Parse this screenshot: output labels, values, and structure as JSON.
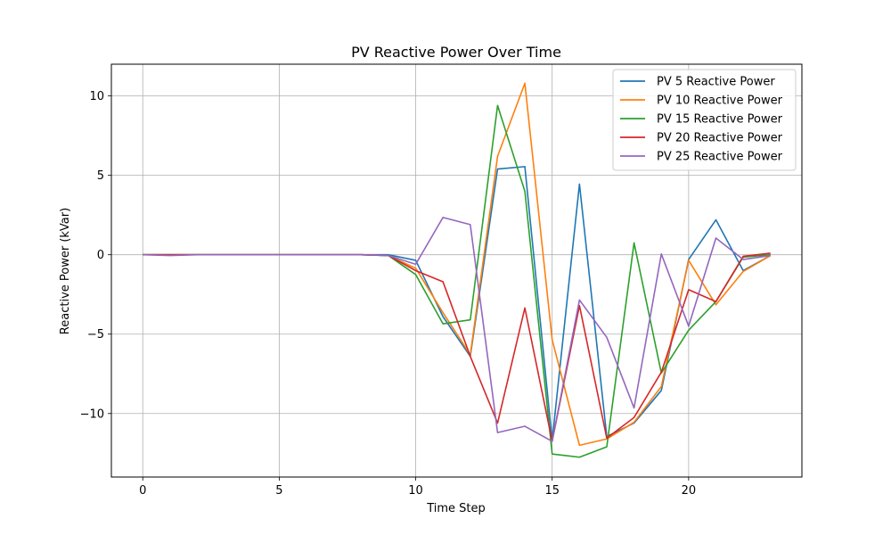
{
  "chart_data": {
    "type": "line",
    "title": "PV Reactive Power Over Time",
    "xlabel": "Time Step",
    "ylabel": "Reactive Power (kVar)",
    "xlim": [
      -1.15,
      24.15
    ],
    "ylim": [
      -14.0,
      12.0
    ],
    "xticks": [
      0,
      5,
      10,
      15,
      20
    ],
    "yticks": [
      -10,
      -5,
      0,
      5,
      10
    ],
    "xtick_labels": [
      "0",
      "5",
      "10",
      "15",
      "20"
    ],
    "ytick_labels": [
      "−10",
      "−5",
      "0",
      "5",
      "10"
    ],
    "grid": true,
    "legend_position": "top-right",
    "x": [
      0,
      1,
      2,
      3,
      4,
      5,
      6,
      7,
      8,
      9,
      10,
      11,
      12,
      13,
      14,
      15,
      16,
      17,
      18,
      19,
      20,
      21,
      22,
      23
    ],
    "series": [
      {
        "name": "PV 5 Reactive Power",
        "color": "#1f77b4",
        "values": [
          0.0,
          0.0,
          0.0,
          0.0,
          0.0,
          0.0,
          0.0,
          0.0,
          0.0,
          0.0,
          -0.35,
          -3.9,
          -6.4,
          5.4,
          5.55,
          -11.7,
          4.45,
          -11.45,
          -10.6,
          -8.55,
          -0.3,
          2.2,
          -1.0,
          -0.05
        ]
      },
      {
        "name": "PV 10 Reactive Power",
        "color": "#ff7f0e",
        "values": [
          0.0,
          0.0,
          0.0,
          0.0,
          0.0,
          0.0,
          0.0,
          0.0,
          0.0,
          -0.05,
          -0.85,
          -3.65,
          -6.3,
          6.2,
          10.8,
          -5.35,
          -12.0,
          -11.6,
          -10.55,
          -8.3,
          -0.35,
          -3.15,
          -1.05,
          -0.05
        ]
      },
      {
        "name": "PV 15 Reactive Power",
        "color": "#2ca02c",
        "values": [
          0.0,
          0.0,
          0.0,
          0.0,
          0.0,
          0.0,
          0.0,
          0.0,
          0.0,
          -0.05,
          -1.25,
          -4.35,
          -4.1,
          9.4,
          4.0,
          -12.55,
          -12.75,
          -12.1,
          0.75,
          -7.45,
          -4.75,
          -2.95,
          -0.15,
          0.0
        ]
      },
      {
        "name": "PV 20 Reactive Power",
        "color": "#d62728",
        "values": [
          0.0,
          0.0,
          0.0,
          0.0,
          0.0,
          0.0,
          0.0,
          0.0,
          0.0,
          -0.05,
          -1.0,
          -1.7,
          -6.4,
          -10.6,
          -3.35,
          -11.75,
          -3.2,
          -11.55,
          -10.25,
          -7.4,
          -2.2,
          -2.95,
          -0.1,
          0.1
        ]
      },
      {
        "name": "PV 25 Reactive Power",
        "color": "#9467bd",
        "values": [
          0.0,
          -0.05,
          0.0,
          0.0,
          0.0,
          0.0,
          0.0,
          0.0,
          0.0,
          -0.05,
          -0.6,
          2.35,
          1.9,
          -11.2,
          -10.8,
          -11.75,
          -2.85,
          -5.2,
          -9.65,
          0.05,
          -4.5,
          1.05,
          -0.3,
          -0.05
        ]
      }
    ]
  }
}
